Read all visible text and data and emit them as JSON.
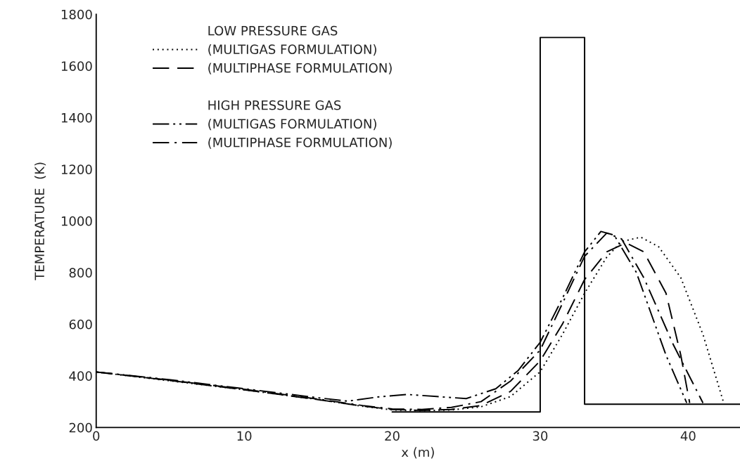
{
  "chart_data": {
    "type": "line",
    "xlabel": "x (m)",
    "ylabel": "TEMPERATURE  (K)",
    "xlim": [
      0,
      43.5
    ],
    "xticks": [
      0,
      10,
      20,
      30,
      40
    ],
    "ylim": [
      200,
      1800
    ],
    "yticks": [
      200,
      400,
      600,
      800,
      1000,
      1200,
      1400,
      1600,
      1800
    ],
    "grid": false,
    "legend": "top left",
    "marker": "none",
    "annotations": [
      "LOW PRESSURE GAS",
      "HIGH PRESSURE GAS"
    ],
    "series": [
      {
        "name": "(MULTIGAS FORMULATION)",
        "color": "#000000",
        "line_style": "dotted",
        "x": [
          0,
          10,
          15,
          18,
          20,
          22,
          24,
          26,
          28,
          30,
          31.5,
          33,
          34.5,
          35.5,
          36.8,
          38,
          39.5,
          41,
          42.4
        ],
        "values": [
          415,
          346,
          308,
          282,
          268,
          265,
          268,
          280,
          320,
          416,
          560,
          720,
          860,
          920,
          937,
          900,
          780,
          560,
          295
        ]
      },
      {
        "name": "(MULTIPHASE FORMULATION)",
        "color": "#000000",
        "line_style": "dashed",
        "x": [
          0,
          5,
          10,
          15,
          18,
          20,
          22,
          24,
          26,
          28,
          30,
          31.5,
          33,
          34.5,
          35.8,
          37,
          38.5,
          39.5,
          40.1
        ],
        "values": [
          415,
          382,
          346,
          308,
          283,
          270,
          266,
          270,
          285,
          340,
          458,
          600,
          773,
          880,
          915,
          880,
          720,
          480,
          295
        ]
      },
      {
        "name": "(MULTIGAS FORMULATION)",
        "color": "#000000",
        "line_style": "dashdotdot",
        "x": [
          0,
          5,
          10,
          15,
          17,
          19,
          21,
          23,
          25,
          27,
          28.5,
          30,
          31.5,
          33,
          34.1,
          35,
          36.5,
          38.5,
          39.9
        ],
        "values": [
          415,
          385,
          350,
          315,
          302,
          318,
          328,
          320,
          312,
          350,
          420,
          530,
          700,
          880,
          959,
          945,
          800,
          480,
          295
        ]
      },
      {
        "name": "(MULTIPHASE FORMULATION)",
        "color": "#000000",
        "line_style": "dashdot",
        "x": [
          0,
          5,
          10,
          15,
          18,
          20,
          22,
          24,
          26,
          28,
          30,
          31.5,
          33,
          34.5,
          35.5,
          37,
          39,
          41.0
        ],
        "values": [
          415,
          383,
          348,
          310,
          285,
          272,
          270,
          278,
          300,
          380,
          500,
          680,
          863,
          953,
          930,
          780,
          520,
          295
        ]
      },
      {
        "color": "#000000",
        "line_style": "solid",
        "x": [
          20,
          30,
          30,
          33,
          33,
          43.5
        ],
        "values": [
          260,
          260,
          1710,
          1710,
          290,
          290
        ]
      }
    ]
  }
}
